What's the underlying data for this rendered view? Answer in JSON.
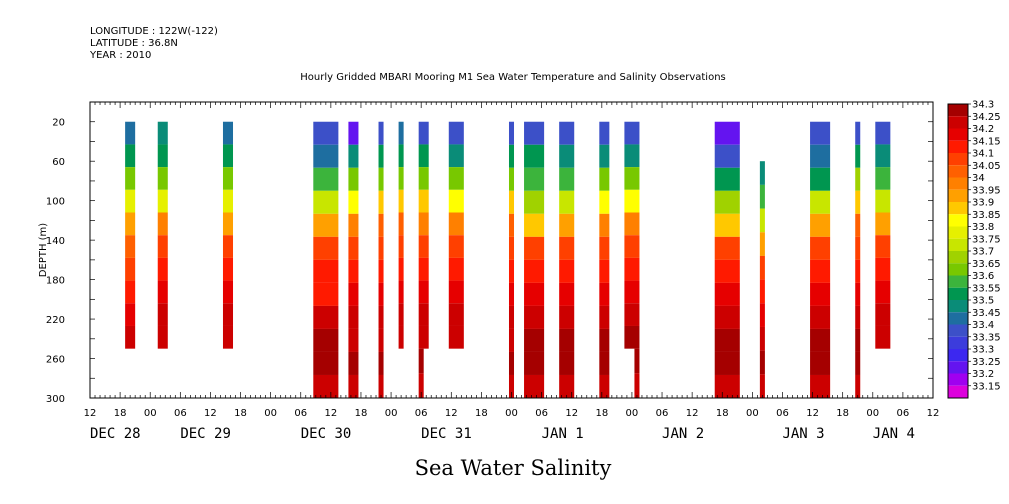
{
  "header": {
    "longitude": "LONGITUDE : 122W(-122)",
    "latitude": "LATITUDE : 36.8N",
    "year": "YEAR : 2010"
  },
  "chart_data": {
    "type": "heatmap",
    "title": "Hourly Gridded MBARI Mooring M1 Sea Water Temperature and Salinity Observations",
    "subtitle": "Sea Water Salinity",
    "ylabel": "DEPTH (m)",
    "xlabel": "",
    "y_reversed": true,
    "ylim": [
      300,
      0
    ],
    "y_ticks": [
      20,
      60,
      100,
      140,
      180,
      220,
      260,
      300
    ],
    "x_range_hours": [
      0,
      168
    ],
    "x_hour_labels": [
      "12",
      "18",
      "00",
      "06",
      "12",
      "18",
      "00",
      "06",
      "12",
      "18",
      "00",
      "06",
      "12",
      "18",
      "00",
      "06",
      "12",
      "18",
      "00",
      "06",
      "12",
      "18",
      "00",
      "06",
      "12",
      "18",
      "00",
      "06",
      "12"
    ],
    "x_date_labels": [
      {
        "label": "DEC 28",
        "hour": 0
      },
      {
        "label": "DEC 29",
        "hour": 18
      },
      {
        "label": "DEC 30",
        "hour": 42
      },
      {
        "label": "DEC 31",
        "hour": 66
      },
      {
        "label": "JAN  1",
        "hour": 90
      },
      {
        "label": "JAN  2",
        "hour": 114
      },
      {
        "label": "JAN  3",
        "hour": 138
      },
      {
        "label": "JAN  4",
        "hour": 156
      }
    ],
    "colorbar": {
      "levels": [
        "34.3",
        "34.25",
        "34.2",
        "34.15",
        "34.1",
        "34.05",
        "34",
        "33.95",
        "33.9",
        "33.85",
        "33.8",
        "33.75",
        "33.7",
        "33.65",
        "33.6",
        "33.55",
        "33.5",
        "33.45",
        "33.4",
        "33.35",
        "33.3",
        "33.25",
        "33.2",
        "33.15"
      ],
      "colors": [
        "#a50000",
        "#cc0000",
        "#e60000",
        "#ff1a00",
        "#ff4000",
        "#ff6000",
        "#ff8000",
        "#ffa000",
        "#ffc800",
        "#ffff00",
        "#e6f000",
        "#c8e600",
        "#a0d200",
        "#78c800",
        "#3cb43c",
        "#009650",
        "#0a8c78",
        "#1e6ea0",
        "#3c50c8",
        "#3c3cdc",
        "#3c28f0",
        "#6414f0",
        "#a000f0",
        "#dc00dc"
      ]
    },
    "series": [
      {
        "start": 7,
        "end": 9,
        "top": 20,
        "bottom": 250,
        "profile": [
          33.42,
          33.5,
          33.62,
          33.75,
          33.9,
          34.02,
          34.08,
          34.12,
          34.18,
          34.22
        ]
      },
      {
        "start": 13.5,
        "end": 15.5,
        "top": 20,
        "bottom": 250,
        "profile": [
          33.45,
          33.52,
          33.62,
          33.78,
          33.95,
          34.05,
          34.1,
          34.15,
          34.2,
          34.23
        ]
      },
      {
        "start": 26.5,
        "end": 28.5,
        "top": 20,
        "bottom": 250,
        "profile": [
          33.42,
          33.52,
          33.62,
          33.78,
          33.92,
          34.05,
          34.1,
          34.15,
          34.2,
          34.22
        ]
      },
      {
        "start": 44.5,
        "end": 49.5,
        "top": 20,
        "bottom": 300,
        "profile": [
          33.35,
          33.42,
          33.55,
          33.7,
          33.92,
          34.08,
          34.1,
          34.12,
          34.2,
          34.25,
          34.28,
          34.22
        ]
      },
      {
        "start": 51.5,
        "end": 53.5,
        "top": 20,
        "bottom": 300,
        "profile": [
          33.22,
          33.48,
          33.6,
          33.8,
          33.95,
          34.08,
          34.1,
          34.15,
          34.2,
          34.23,
          34.25,
          34.22
        ]
      },
      {
        "start": 57.5,
        "end": 58.5,
        "top": 20,
        "bottom": 300,
        "profile": [
          33.35,
          33.5,
          33.62,
          33.85,
          34.0,
          34.08,
          34.1,
          34.15,
          34.2,
          34.24,
          34.25,
          34.22
        ]
      },
      {
        "start": 61.5,
        "end": 62.5,
        "top": 20,
        "bottom": 250,
        "profile": [
          33.4,
          33.5,
          33.62,
          33.85,
          34.0,
          34.08,
          34.1,
          34.15,
          34.2,
          34.24
        ]
      },
      {
        "start": 65.5,
        "end": 67.5,
        "top": 20,
        "bottom": 250,
        "profile": [
          33.35,
          33.5,
          33.62,
          33.85,
          33.98,
          34.08,
          34.1,
          34.15,
          34.2,
          34.24
        ]
      },
      {
        "start": 65.5,
        "end": 66.5,
        "top": 250,
        "bottom": 300,
        "profile": [
          34.25,
          34.22
        ]
      },
      {
        "start": 71.5,
        "end": 74.5,
        "top": 20,
        "bottom": 250,
        "profile": [
          33.35,
          33.48,
          33.6,
          33.82,
          33.98,
          34.08,
          34.1,
          34.15,
          34.2,
          34.24
        ]
      },
      {
        "start": 83.5,
        "end": 84.5,
        "top": 20,
        "bottom": 300,
        "profile": [
          33.35,
          33.5,
          33.62,
          33.85,
          34.0,
          34.08,
          34.12,
          34.15,
          34.2,
          34.24,
          34.25,
          34.22
        ]
      },
      {
        "start": 86.5,
        "end": 90.5,
        "top": 20,
        "bottom": 300,
        "profile": [
          33.38,
          33.5,
          33.55,
          33.65,
          33.85,
          34.05,
          34.12,
          34.18,
          34.22,
          34.26,
          34.28,
          34.22
        ]
      },
      {
        "start": 93.5,
        "end": 96.5,
        "top": 20,
        "bottom": 300,
        "profile": [
          33.38,
          33.48,
          33.55,
          33.7,
          33.9,
          34.05,
          34.12,
          34.18,
          34.22,
          34.26,
          34.28,
          34.22
        ]
      },
      {
        "start": 101.5,
        "end": 103.5,
        "top": 20,
        "bottom": 300,
        "profile": [
          33.38,
          33.48,
          33.6,
          33.8,
          33.95,
          34.08,
          34.12,
          34.18,
          34.22,
          34.26,
          34.26,
          34.22
        ]
      },
      {
        "start": 106.5,
        "end": 109.5,
        "top": 20,
        "bottom": 250,
        "profile": [
          33.38,
          33.48,
          33.6,
          33.82,
          33.98,
          34.08,
          34.12,
          34.18,
          34.22,
          34.26
        ]
      },
      {
        "start": 108.5,
        "end": 109.5,
        "top": 250,
        "bottom": 300,
        "profile": [
          34.25,
          34.22
        ]
      },
      {
        "start": 124.5,
        "end": 129.5,
        "top": 20,
        "bottom": 300,
        "profile": [
          33.2,
          33.38,
          33.52,
          33.68,
          33.88,
          34.05,
          34.1,
          34.15,
          34.2,
          34.25,
          34.28,
          34.22
        ]
      },
      {
        "start": 133.5,
        "end": 134.5,
        "top": 60,
        "bottom": 300,
        "profile": [
          33.45,
          33.55,
          33.7,
          33.9,
          34.05,
          34.1,
          34.15,
          34.2,
          34.25,
          34.22
        ]
      },
      {
        "start": 143.5,
        "end": 147.5,
        "top": 20,
        "bottom": 300,
        "profile": [
          33.35,
          33.4,
          33.52,
          33.72,
          33.9,
          34.05,
          34.1,
          34.15,
          34.2,
          34.25,
          34.28,
          34.22
        ]
      },
      {
        "start": 152.5,
        "end": 153.5,
        "top": 20,
        "bottom": 300,
        "profile": [
          33.35,
          33.5,
          33.65,
          33.85,
          34.0,
          34.08,
          34.12,
          34.18,
          34.22,
          34.25,
          34.25,
          34.22
        ]
      },
      {
        "start": 156.5,
        "end": 159.5,
        "top": 20,
        "bottom": 250,
        "profile": [
          33.38,
          33.45,
          33.55,
          33.72,
          33.9,
          34.05,
          34.1,
          34.15,
          34.2,
          34.24
        ]
      }
    ]
  }
}
